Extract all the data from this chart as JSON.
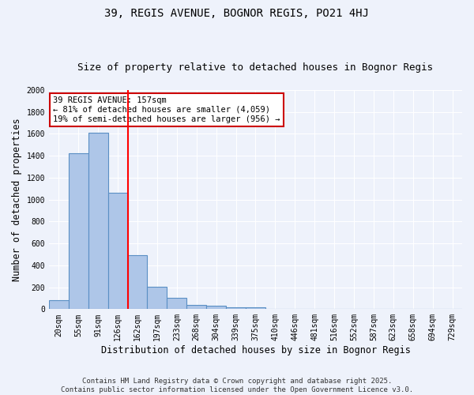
{
  "title": "39, REGIS AVENUE, BOGNOR REGIS, PO21 4HJ",
  "subtitle": "Size of property relative to detached houses in Bognor Regis",
  "xlabel": "Distribution of detached houses by size in Bognor Regis",
  "ylabel": "Number of detached properties",
  "categories": [
    "20sqm",
    "55sqm",
    "91sqm",
    "126sqm",
    "162sqm",
    "197sqm",
    "233sqm",
    "268sqm",
    "304sqm",
    "339sqm",
    "375sqm",
    "410sqm",
    "446sqm",
    "481sqm",
    "516sqm",
    "552sqm",
    "587sqm",
    "623sqm",
    "658sqm",
    "694sqm",
    "729sqm"
  ],
  "values": [
    80,
    1420,
    1610,
    1060,
    490,
    205,
    105,
    40,
    30,
    20,
    17,
    0,
    0,
    0,
    0,
    0,
    0,
    0,
    0,
    0,
    0
  ],
  "bar_color": "#aec6e8",
  "bar_edge_color": "#5a8fc4",
  "red_line_index": 3.5,
  "annotation_line1": "39 REGIS AVENUE: 157sqm",
  "annotation_line2": "← 81% of detached houses are smaller (4,059)",
  "annotation_line3": "19% of semi-detached houses are larger (956) →",
  "annotation_box_color": "#ffffff",
  "annotation_box_edge": "#cc0000",
  "ylim": [
    0,
    2000
  ],
  "yticks": [
    0,
    200,
    400,
    600,
    800,
    1000,
    1200,
    1400,
    1600,
    1800,
    2000
  ],
  "background_color": "#eef2fb",
  "grid_color": "#ffffff",
  "footer_line1": "Contains HM Land Registry data © Crown copyright and database right 2025.",
  "footer_line2": "Contains public sector information licensed under the Open Government Licence v3.0.",
  "title_fontsize": 10,
  "subtitle_fontsize": 9,
  "axis_label_fontsize": 8.5,
  "tick_fontsize": 7,
  "annotation_fontsize": 7.5,
  "footer_fontsize": 6.5
}
